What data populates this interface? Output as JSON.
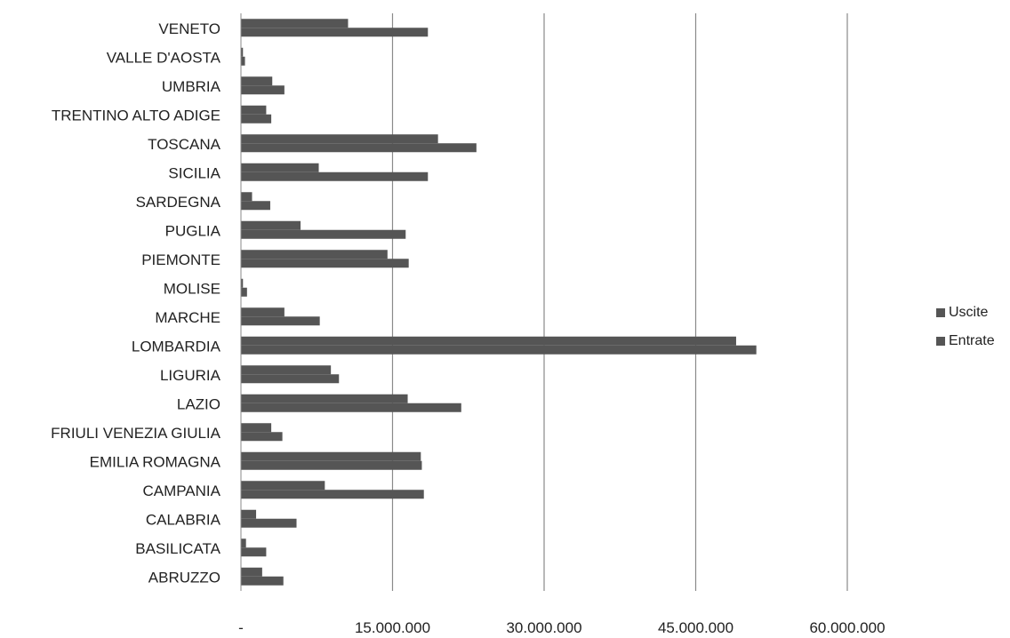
{
  "chart_data": {
    "type": "bar",
    "orientation": "horizontal",
    "categories": [
      "VENETO",
      "VALLE D'AOSTA",
      "UMBRIA",
      "TRENTINO ALTO ADIGE",
      "TOSCANA",
      "SICILIA",
      "SARDEGNA",
      "PUGLIA",
      "PIEMONTE",
      "MOLISE",
      "MARCHE",
      "LOMBARDIA",
      "LIGURIA",
      "LAZIO",
      "FRIULI VENEZIA GIULIA",
      "EMILIA ROMAGNA",
      "CAMPANIA",
      "CALABRIA",
      "BASILICATA",
      "ABRUZZO"
    ],
    "series": [
      {
        "name": "Uscite",
        "color": "#555555",
        "values": [
          10600000,
          200000,
          3100000,
          2500000,
          19500000,
          7700000,
          1100000,
          5900000,
          14500000,
          200000,
          4300000,
          49000000,
          8900000,
          16500000,
          3000000,
          17800000,
          8300000,
          1500000,
          500000,
          2100000
        ]
      },
      {
        "name": "Entrate",
        "color": "#555555",
        "values": [
          18500000,
          400000,
          4300000,
          3000000,
          23300000,
          18500000,
          2900000,
          16300000,
          16600000,
          600000,
          7800000,
          51000000,
          9700000,
          21800000,
          4100000,
          17900000,
          18100000,
          5500000,
          2500000,
          4200000
        ]
      }
    ],
    "x_ticks": [
      "-",
      "15.000.000",
      "30.000.000",
      "45.000.000",
      "60.000.000"
    ],
    "xlim": [
      0,
      60000000
    ],
    "grid": "vertical",
    "legend_position": "right",
    "title": "",
    "xlabel": "",
    "ylabel": ""
  }
}
